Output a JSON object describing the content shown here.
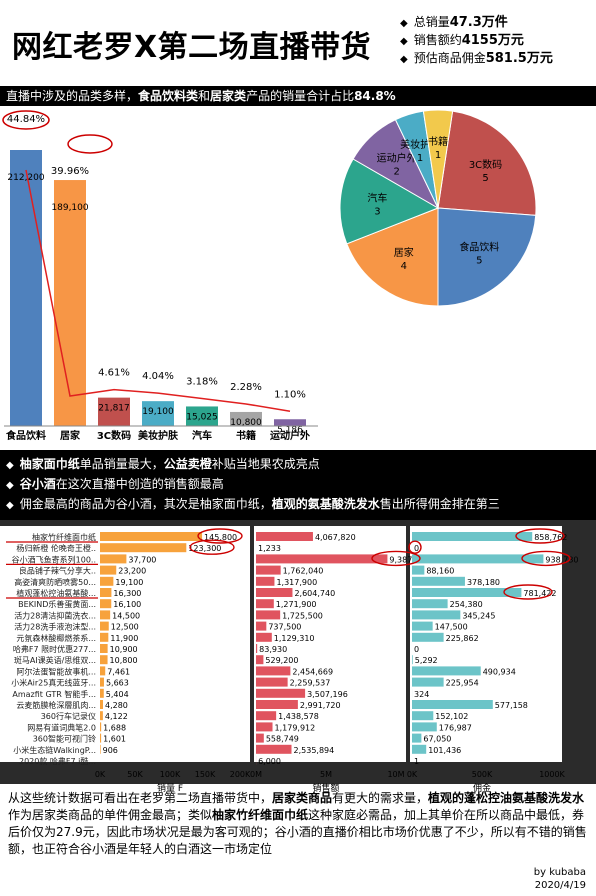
{
  "title": "网红老罗X第二场直播带货",
  "kpis": [
    {
      "label": "总销量",
      "value": "47.3万件"
    },
    {
      "label": "销售额约",
      "value": "4155万元"
    },
    {
      "label": "预估商品佣金",
      "value": "581.5万元"
    }
  ],
  "banner1": {
    "pre": "直播中涉及的品类多样，",
    "h1": "食品饮料类",
    "mid": "和",
    "h2": "居家类",
    "post": "产品的销量合计占比",
    "h3": "84.8%"
  },
  "banner2": {
    "line1": {
      "h1": "柚家面巾纸",
      "mid": "单品销量最大，",
      "h2": "公益卖橙",
      "post": "补贴当地果农成亮点"
    },
    "line2": {
      "h1": "谷小酒",
      "post": "在这次直播中创造的销售额最高"
    },
    "line3": {
      "pre": "佣金最高的商品为谷小酒，其次是柚家面巾纸，",
      "h1": "植观的氨基酸洗发水",
      "post": "售出所得佣金排在第三"
    }
  },
  "footer": {
    "p1": "从这些统计数据可看出在老罗第二场直播带货中，",
    "h1": "居家类商品",
    "p2": "有更大的需求量，",
    "h2": "植观的蓬松控油氨基酸洗发水",
    "p3": "作为居家类商品的单件佣金最高；类似",
    "h3": "柚家竹纤维面巾纸",
    "p4": "这种家庭必需品，加上其单价在所以商品中最低，券后价仅为27.9元，因此市场状况是最为客可观的；谷小酒的直播价相比市场价优惠了不少，所以有不错的销售额，也正符合谷小酒是年轻人的白酒这一市场定位"
  },
  "signature": {
    "author": "by kubaba",
    "date": "2020/4/19"
  },
  "colors": {
    "blue": "#4f81bd",
    "orange": "#f79646",
    "red": "#c0504d",
    "teal": "#4bacc6",
    "green": "#2ca58d",
    "gray": "#a5a5a5",
    "purple": "#8064a2",
    "yellow": "#f2c94c",
    "annot": "#cc0000"
  },
  "chart_data": [
    {
      "type": "bar",
      "categories": [
        "食品饮料",
        "居家",
        "3C数码",
        "美妆护肤",
        "汽车",
        "书籍",
        "运动户外"
      ],
      "values": [
        212200,
        189100,
        21817,
        19100,
        15025,
        10800,
        5186
      ],
      "pct_labels": [
        "44.84%",
        "39.96%",
        "4.61%",
        "4.04%",
        "3.18%",
        "2.28%",
        "1.10%"
      ],
      "value_labels": [
        "212,200",
        "189,100",
        "21,817",
        "19,100",
        "15,025",
        "10,800",
        "5,186"
      ],
      "colors": [
        "#4f81bd",
        "#f79646",
        "#c0504d",
        "#4bacc6",
        "#2ca58d",
        "#a5a5a5",
        "#8064a2"
      ],
      "overlay": "cumulative pareto line"
    },
    {
      "type": "pie",
      "slices": [
        {
          "label": "3C数码",
          "value": 5,
          "color": "#c0504d"
        },
        {
          "label": "食品饮料",
          "value": 5,
          "color": "#4f81bd"
        },
        {
          "label": "居家",
          "value": 4,
          "color": "#f79646"
        },
        {
          "label": "汽车",
          "value": 3,
          "color": "#2ca58d"
        },
        {
          "label": "运动户外",
          "value": 2,
          "color": "#8064a2"
        },
        {
          "label": "美妆护肤",
          "value": 1,
          "color": "#4bacc6"
        },
        {
          "label": "书籍",
          "value": 1,
          "color": "#f2c94c"
        }
      ]
    },
    {
      "type": "bar",
      "orientation": "horizontal",
      "products": [
        "柚家竹纤维面巾纸",
        "杨归新橙 伦晚奇王橙..",
        "谷小酒飞鱼寄系列100..",
        "良品铺子辣气分享大..",
        "高姿清爽防晒喷雾50...",
        "植观蓬松控油氨基酸...",
        "BEKIND乐善蛋黄面...",
        "活力28清洁抑菌洗衣...",
        "活力28洗手液泡沫型...",
        "元氛森林酸椰燃茶系...",
        "哈弗F7 限时优惠277...",
        "斑马AI课英语/思维双...",
        "阿尔法蛋智能故事机...",
        "小米Air25真无线蓝牙...",
        "Amazfit GTR 智能手...",
        "云麦筋膜枪深層肌肉...",
        "360行车记录仪",
        "网易有道词典笔2.0",
        "360智能可视门铃",
        "小米生态链WalkingP...",
        "2020款 哈弗F7 i酷..."
      ],
      "series": [
        {
          "name": "销量 F",
          "values": [
            145800,
            123300,
            37700,
            23200,
            19100,
            16300,
            16100,
            14500,
            12500,
            11900,
            10900,
            10800,
            7461,
            5663,
            5404,
            4280,
            4122,
            1688,
            1601,
            906,
            2
          ],
          "value_labels": [
            "145,800",
            "123,300",
            "37,700",
            "23,200",
            "19,100",
            "16,300",
            "16,100",
            "14,500",
            "12,500",
            "11,900",
            "10,900",
            "10,800",
            "7,461",
            "5,663",
            "5,404",
            "4,280",
            "4,122",
            "1,688",
            "1,601",
            "906",
            ""
          ],
          "color": "#f7a23c",
          "xlim": [
            0,
            200000
          ],
          "ticks": [
            "0K",
            "50K",
            "100K",
            "150K",
            "200K"
          ]
        },
        {
          "name": "销售额",
          "values": [
            4067820,
            1233,
            9387300,
            1762040,
            1317900,
            2604740,
            1271900,
            1725500,
            737500,
            1129310,
            83930,
            529200,
            2454669,
            2259537,
            3507196,
            2991720,
            1438578,
            1179912,
            558749,
            2535894,
            6000
          ],
          "value_labels": [
            "4,067,820",
            "1,233",
            "9,387,300",
            "1,762,040",
            "1,317,900",
            "2,604,740",
            "1,271,900",
            "1,725,500",
            "737,500",
            "1,129,310",
            "83,930",
            "529,200",
            "2,454,669",
            "2,259,537",
            "3,507,196",
            "2,991,720",
            "1,438,578",
            "1,179,912",
            "558,749",
            "2,535,894",
            "6,000"
          ],
          "color": "#e0545f",
          "xlim": [
            0,
            10000000
          ],
          "ticks": [
            "0M",
            "5M",
            "10M"
          ]
        },
        {
          "name": "佣金",
          "values": [
            858762,
            0,
            938730,
            88160,
            378180,
            781422,
            254380,
            345245,
            147500,
            225862,
            0,
            5292,
            490934,
            225954,
            324,
            577158,
            152102,
            176987,
            67050,
            101436,
            1
          ],
          "value_labels": [
            "858,762",
            "0",
            "938,730",
            "88,160",
            "378,180",
            "781,422",
            "254,380",
            "345,245",
            "147,500",
            "225,862",
            "0",
            "5,292",
            "490,934",
            "225,954",
            "324",
            "577,158",
            "152,102",
            "176,987",
            "67,050",
            "101,436",
            "1"
          ],
          "color": "#6cc4c8",
          "xlim": [
            0,
            1000000
          ],
          "ticks": [
            "0K",
            "500K",
            "1000K"
          ]
        }
      ]
    }
  ]
}
